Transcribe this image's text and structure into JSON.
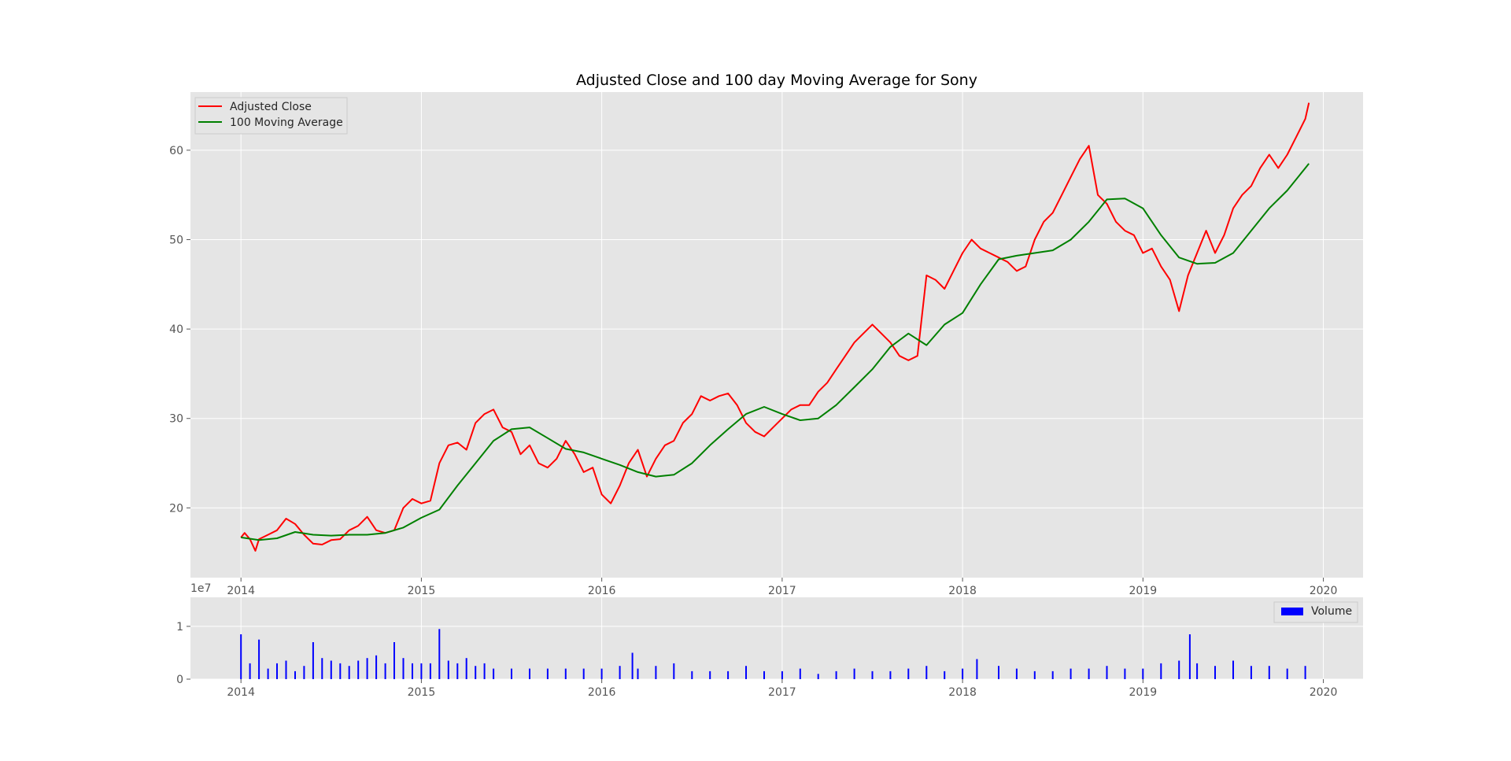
{
  "chart_data": [
    {
      "type": "line",
      "title": "Adjusted Close and 100 day Moving Average for Sony",
      "xlabel": "",
      "ylabel": "",
      "xlim": [
        2013.72,
        2020.22
      ],
      "ylim": [
        12.2,
        66.5
      ],
      "x_ticks": [
        2014,
        2015,
        2016,
        2017,
        2018,
        2019,
        2020
      ],
      "x_tick_labels": [
        "2014",
        "2015",
        "2016",
        "2017",
        "2018",
        "2019",
        "2020"
      ],
      "y_ticks": [
        20,
        30,
        40,
        50,
        60
      ],
      "y_tick_labels": [
        "20",
        "30",
        "40",
        "50",
        "60"
      ],
      "grid": true,
      "legend_position": "top-left",
      "series": [
        {
          "name": "Adjusted Close",
          "color": "#ff0000",
          "x": [
            2014.0,
            2014.02,
            2014.05,
            2014.08,
            2014.1,
            2014.15,
            2014.2,
            2014.25,
            2014.3,
            2014.35,
            2014.4,
            2014.45,
            2014.5,
            2014.55,
            2014.6,
            2014.65,
            2014.7,
            2014.75,
            2014.8,
            2014.85,
            2014.9,
            2014.95,
            2015.0,
            2015.05,
            2015.1,
            2015.15,
            2015.2,
            2015.25,
            2015.3,
            2015.35,
            2015.4,
            2015.45,
            2015.5,
            2015.55,
            2015.6,
            2015.65,
            2015.7,
            2015.75,
            2015.8,
            2015.85,
            2015.9,
            2015.95,
            2016.0,
            2016.05,
            2016.1,
            2016.15,
            2016.2,
            2016.25,
            2016.3,
            2016.35,
            2016.4,
            2016.45,
            2016.5,
            2016.55,
            2016.6,
            2016.65,
            2016.7,
            2016.75,
            2016.8,
            2016.85,
            2016.9,
            2016.95,
            2017.0,
            2017.05,
            2017.1,
            2017.15,
            2017.2,
            2017.25,
            2017.3,
            2017.35,
            2017.4,
            2017.45,
            2017.5,
            2017.55,
            2017.6,
            2017.65,
            2017.7,
            2017.75,
            2017.8,
            2017.85,
            2017.9,
            2017.95,
            2018.0,
            2018.05,
            2018.1,
            2018.15,
            2018.2,
            2018.25,
            2018.3,
            2018.35,
            2018.4,
            2018.45,
            2018.5,
            2018.55,
            2018.6,
            2018.65,
            2018.7,
            2018.75,
            2018.8,
            2018.85,
            2018.9,
            2018.95,
            2019.0,
            2019.05,
            2019.1,
            2019.15,
            2019.2,
            2019.25,
            2019.3,
            2019.35,
            2019.4,
            2019.45,
            2019.5,
            2019.55,
            2019.6,
            2019.65,
            2019.7,
            2019.75,
            2019.8,
            2019.85,
            2019.9,
            2019.92
          ],
          "values": [
            16.7,
            17.2,
            16.5,
            15.2,
            16.5,
            17.0,
            17.5,
            18.8,
            18.2,
            17.0,
            16.0,
            15.9,
            16.4,
            16.5,
            17.5,
            18.0,
            19.0,
            17.5,
            17.2,
            17.5,
            20.0,
            21.0,
            20.5,
            20.8,
            25.0,
            27.0,
            27.3,
            26.5,
            29.5,
            30.5,
            31.0,
            29.0,
            28.5,
            26.0,
            27.0,
            25.0,
            24.5,
            25.5,
            27.5,
            26.0,
            24.0,
            24.5,
            21.5,
            20.5,
            22.5,
            25.0,
            26.5,
            23.5,
            25.5,
            27.0,
            27.5,
            29.5,
            30.5,
            32.5,
            32.0,
            32.5,
            32.8,
            31.5,
            29.5,
            28.5,
            28.0,
            29.0,
            30.0,
            31.0,
            31.5,
            31.5,
            33.0,
            34.0,
            35.5,
            37.0,
            38.5,
            39.5,
            40.5,
            39.5,
            38.5,
            37.0,
            36.5,
            37.0,
            46.0,
            45.5,
            44.5,
            46.5,
            48.5,
            50.0,
            49.0,
            48.5,
            48.0,
            47.5,
            46.5,
            47.0,
            50.0,
            52.0,
            53.0,
            55.0,
            57.0,
            59.0,
            60.5,
            55.0,
            54.0,
            52.0,
            51.0,
            50.5,
            48.5,
            49.0,
            47.0,
            45.5,
            42.0,
            46.0,
            48.5,
            51.0,
            48.5,
            50.5,
            53.5,
            55.0,
            56.0,
            58.0,
            59.5,
            58.0,
            59.5,
            61.5,
            63.5,
            65.3
          ]
        },
        {
          "name": "100 Moving Average",
          "color": "#008000",
          "x": [
            2014.0,
            2014.1,
            2014.2,
            2014.3,
            2014.4,
            2014.5,
            2014.6,
            2014.7,
            2014.8,
            2014.9,
            2015.0,
            2015.1,
            2015.2,
            2015.3,
            2015.4,
            2015.5,
            2015.6,
            2015.7,
            2015.8,
            2015.9,
            2016.0,
            2016.1,
            2016.2,
            2016.3,
            2016.4,
            2016.5,
            2016.6,
            2016.7,
            2016.8,
            2016.9,
            2017.0,
            2017.1,
            2017.2,
            2017.3,
            2017.4,
            2017.5,
            2017.6,
            2017.7,
            2017.8,
            2017.9,
            2018.0,
            2018.1,
            2018.2,
            2018.3,
            2018.4,
            2018.5,
            2018.6,
            2018.7,
            2018.8,
            2018.9,
            2019.0,
            2019.1,
            2019.2,
            2019.3,
            2019.4,
            2019.5,
            2019.6,
            2019.7,
            2019.8,
            2019.9,
            2019.92
          ],
          "values": [
            16.7,
            16.4,
            16.6,
            17.3,
            17.0,
            16.9,
            17.0,
            17.0,
            17.2,
            17.8,
            18.9,
            19.8,
            22.5,
            25.0,
            27.5,
            28.8,
            29.0,
            27.8,
            26.6,
            26.2,
            25.5,
            24.8,
            24.0,
            23.5,
            23.7,
            25.0,
            27.0,
            28.8,
            30.5,
            31.3,
            30.5,
            29.8,
            30.0,
            31.5,
            33.5,
            35.5,
            38.0,
            39.5,
            38.2,
            40.5,
            41.8,
            45.0,
            47.8,
            48.2,
            48.5,
            48.8,
            50.0,
            52.0,
            54.5,
            54.6,
            53.5,
            50.5,
            48.0,
            47.3,
            47.4,
            48.5,
            51.0,
            53.5,
            55.5,
            58.0,
            58.5
          ]
        }
      ]
    },
    {
      "type": "bar",
      "title": "",
      "offset_label": "1e7",
      "xlim": [
        2013.72,
        2020.22
      ],
      "ylim": [
        0,
        1.55
      ],
      "x_ticks": [
        2014,
        2015,
        2016,
        2017,
        2018,
        2019,
        2020
      ],
      "x_tick_labels": [
        "2014",
        "2015",
        "2016",
        "2017",
        "2018",
        "2019",
        "2020"
      ],
      "y_ticks": [
        0,
        1
      ],
      "y_tick_labels": [
        "0",
        "1"
      ],
      "grid": true,
      "legend_position": "top-right",
      "series": [
        {
          "name": "Volume",
          "color": "#0000ff",
          "x": [
            2014.0,
            2014.05,
            2014.1,
            2014.15,
            2014.2,
            2014.25,
            2014.3,
            2014.35,
            2014.4,
            2014.45,
            2014.5,
            2014.55,
            2014.6,
            2014.65,
            2014.7,
            2014.75,
            2014.8,
            2014.85,
            2014.9,
            2014.95,
            2015.0,
            2015.05,
            2015.1,
            2015.15,
            2015.2,
            2015.25,
            2015.3,
            2015.35,
            2015.4,
            2015.5,
            2015.6,
            2015.7,
            2015.8,
            2015.9,
            2016.0,
            2016.1,
            2016.17,
            2016.2,
            2016.3,
            2016.4,
            2016.5,
            2016.6,
            2016.7,
            2016.8,
            2016.9,
            2017.0,
            2017.1,
            2017.2,
            2017.3,
            2017.4,
            2017.5,
            2017.6,
            2017.7,
            2017.8,
            2017.9,
            2018.0,
            2018.08,
            2018.2,
            2018.3,
            2018.4,
            2018.5,
            2018.6,
            2018.7,
            2018.8,
            2018.9,
            2019.0,
            2019.1,
            2019.2,
            2019.26,
            2019.3,
            2019.4,
            2019.5,
            2019.6,
            2019.7,
            2019.8,
            2019.9
          ],
          "values": [
            0.85,
            0.3,
            0.75,
            0.2,
            0.3,
            0.35,
            0.15,
            0.25,
            0.7,
            0.4,
            0.35,
            0.3,
            0.25,
            0.35,
            0.4,
            0.45,
            0.3,
            0.7,
            0.4,
            0.3,
            0.3,
            0.3,
            0.95,
            0.35,
            0.3,
            0.4,
            0.25,
            0.3,
            0.2,
            0.2,
            0.2,
            0.2,
            0.2,
            0.2,
            0.2,
            0.25,
            0.5,
            0.2,
            0.25,
            0.3,
            0.15,
            0.15,
            0.15,
            0.25,
            0.15,
            0.15,
            0.2,
            0.1,
            0.15,
            0.2,
            0.15,
            0.15,
            0.2,
            0.25,
            0.15,
            0.2,
            0.38,
            0.25,
            0.2,
            0.15,
            0.15,
            0.2,
            0.2,
            0.25,
            0.2,
            0.2,
            0.3,
            0.35,
            0.85,
            0.3,
            0.25,
            0.35,
            0.25,
            0.25,
            0.2,
            0.25
          ]
        }
      ]
    }
  ]
}
